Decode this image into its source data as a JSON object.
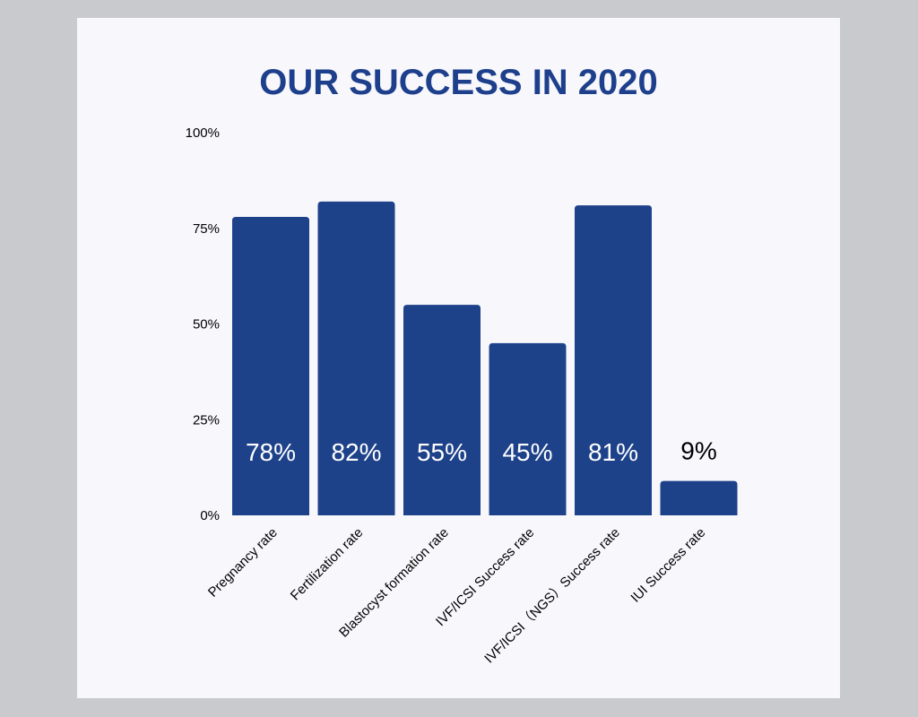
{
  "chart_data": {
    "type": "bar",
    "title": "OUR SUCCESS IN 2020",
    "xlabel": "",
    "ylabel": "",
    "ylim": [
      0,
      100
    ],
    "yticks": [
      0,
      25,
      50,
      75,
      100
    ],
    "ytick_labels": [
      "0%",
      "25%",
      "50%",
      "75%",
      "100%"
    ],
    "categories": [
      "Pregnancy rate",
      "Fertilization rate",
      "Blastocyst formation rate",
      "IVF/ICSI Success rate",
      "IVF/ICSI（NGS）Success rate",
      "IUI Success rate"
    ],
    "values": [
      78,
      82,
      55,
      45,
      81,
      9
    ],
    "data_labels": [
      "78%",
      "82%",
      "55%",
      "45%",
      "81%",
      "9%"
    ],
    "grid": false,
    "legend": "none",
    "colors": {
      "bar": "#1e428a",
      "title": "#1e3f8c",
      "label_inside": "#ffffff",
      "label_outside": "#000000",
      "axis_text": "#000000"
    }
  }
}
